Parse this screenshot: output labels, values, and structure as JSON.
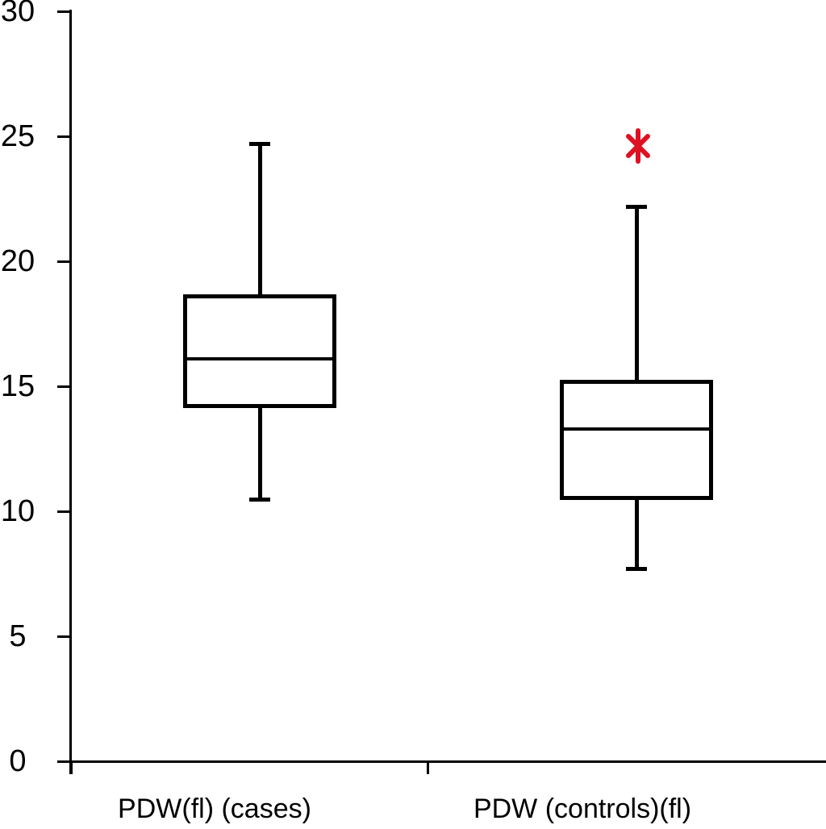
{
  "chart_data": {
    "type": "boxplot",
    "title": "",
    "xlabel": "",
    "ylabel": "",
    "categories": [
      "PDW(fl) (cases)",
      "PDW (controls)(fl)"
    ],
    "yticks": [
      0,
      5,
      10,
      15,
      20,
      25,
      30
    ],
    "ylim": [
      0,
      30
    ],
    "grid": false,
    "legend": false,
    "series": [
      {
        "label": "PDW(fl) (cases)",
        "whisker_low": 10.5,
        "q1": 14.2,
        "median": 16.1,
        "q3": 18.6,
        "whisker_high": 24.7,
        "outliers": []
      },
      {
        "label": "PDW (controls)(fl)",
        "whisker_low": 7.7,
        "q1": 10.5,
        "median": 13.3,
        "q3": 15.2,
        "whisker_high": 22.2,
        "outliers": [
          24.6
        ]
      }
    ],
    "outlier_marker": "red-asterisk",
    "colors": {
      "box_stroke": "#000000",
      "axis": "#000000",
      "outlier": "#dd1122",
      "background": "#ffffff"
    }
  }
}
